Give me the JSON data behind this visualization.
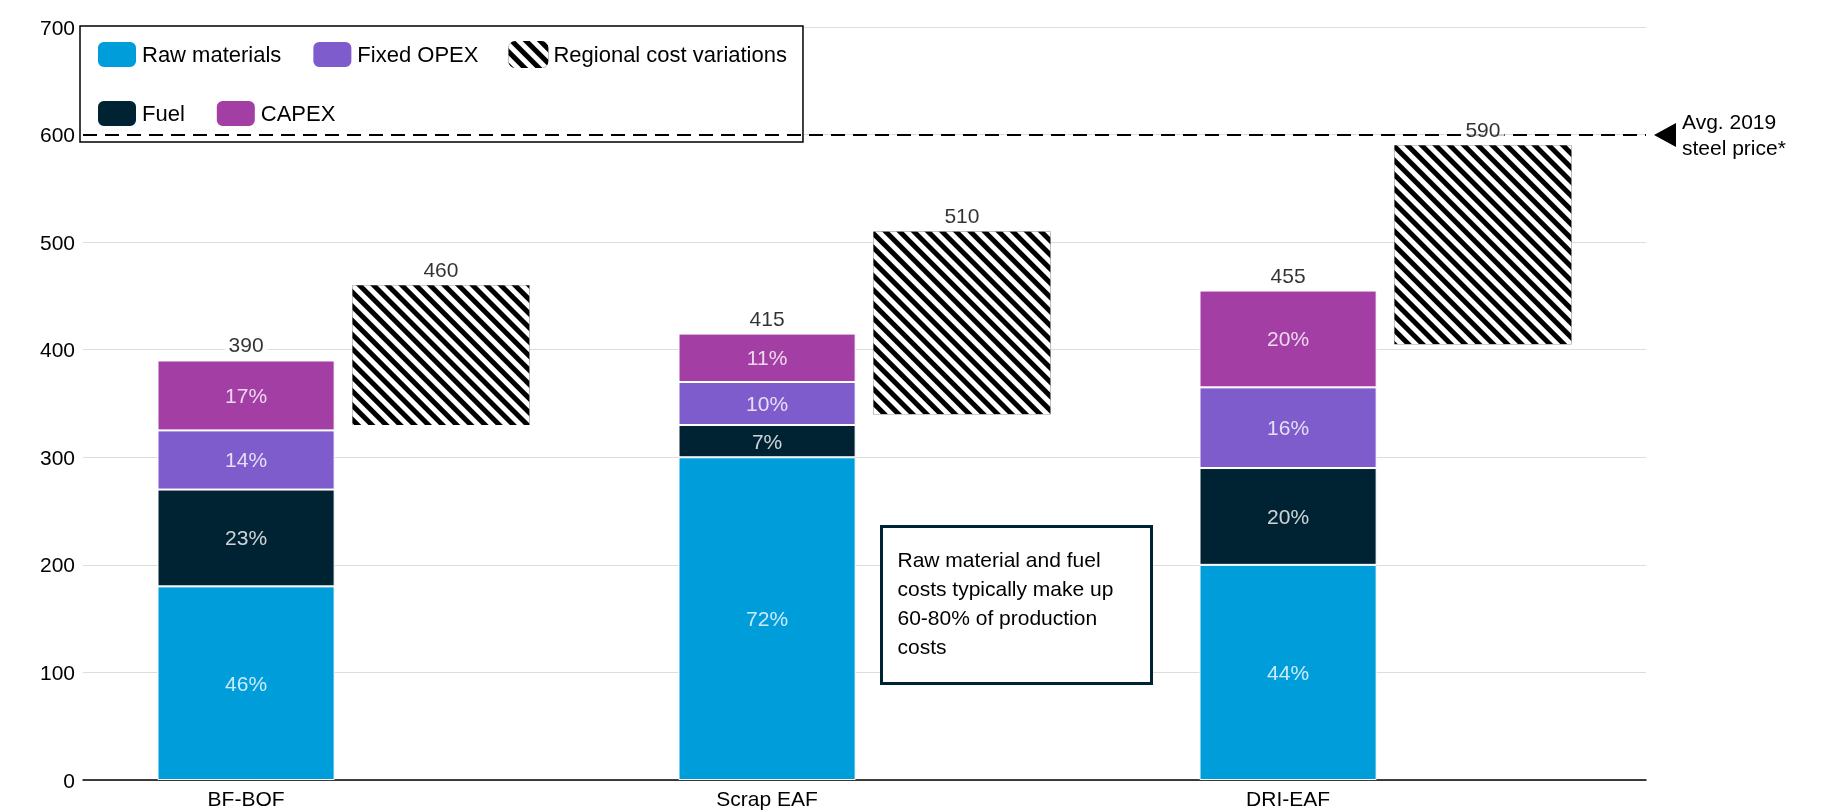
{
  "chart_data": {
    "type": "bar",
    "categories": [
      "BF-BOF",
      "Scrap EAF",
      "DRI-EAF"
    ],
    "series": [
      {
        "name": "Raw materials",
        "color": "#009ddb",
        "base": [
          0,
          0,
          0
        ],
        "values": [
          180,
          300,
          200
        ]
      },
      {
        "name": "Fuel",
        "color": "#002333",
        "base": [
          180,
          300,
          200
        ],
        "values": [
          90,
          30,
          90
        ]
      },
      {
        "name": "Fixed OPEX",
        "color": "#7f5ccc",
        "base": [
          270,
          330,
          290
        ],
        "values": [
          55,
          40,
          75
        ]
      },
      {
        "name": "CAPEX",
        "color": "#a33ea5",
        "base": [
          325,
          370,
          365
        ],
        "values": [
          65,
          45,
          90
        ]
      },
      {
        "name": "Regional cost variations",
        "color": "#000000",
        "base": [
          330,
          340,
          405
        ],
        "values": [
          130,
          170,
          185
        ]
      }
    ],
    "ylim": [
      0,
      700
    ],
    "yticks": [
      0,
      100,
      200,
      300,
      400,
      500,
      600,
      700
    ],
    "grid": "y",
    "legend": "top left",
    "ref_lines": [
      {
        "axis": "y",
        "value": 600,
        "label": "Avg. 2019 steel price*",
        "line_style": "dashed",
        "color": "#000000"
      }
    ],
    "annotations": [
      {
        "text": "23%",
        "x": "BF-BOF",
        "y": 180
      },
      {
        "text": "14%",
        "x": "BF-BOF",
        "y": 270
      },
      {
        "text": "17%",
        "x": "BF-BOF",
        "y": 325
      },
      {
        "text": "390",
        "x": "BF-BOF",
        "y": 390
      },
      {
        "text": "7%",
        "x": "Scrap EAF",
        "y": 300
      },
      {
        "text": "10%",
        "x": "Scrap EAF",
        "y": 330
      },
      {
        "text": "11%",
        "x": "Scrap EAF",
        "y": 370
      },
      {
        "text": "415",
        "x": "Scrap EAF",
        "y": 415
      },
      {
        "text": "20%",
        "x": "DRI-EAF",
        "y": 200
      },
      {
        "text": "16%",
        "x": "DRI-EAF",
        "y": 290
      },
      {
        "text": "20%",
        "x": "DRI-EAF",
        "y": 365
      },
      {
        "text": "455",
        "x": "DRI-EAF",
        "y": 455
      },
      "46%",
      "72%",
      "44%",
      "460",
      "510",
      "590",
      "Raw material and fuel costs typically make up 60-80% of production costs"
    ]
  }
}
